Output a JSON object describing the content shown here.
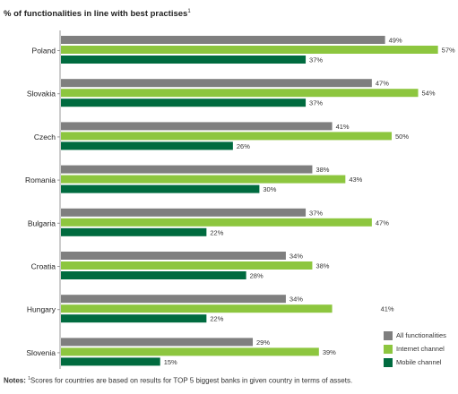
{
  "chart_data": {
    "type": "bar",
    "orientation": "horizontal",
    "title": "% of functionalities in line with best practises",
    "title_footnote": "1",
    "categories": [
      "Poland",
      "Slovakia",
      "Czech",
      "Romania",
      "Bulgaria",
      "Croatia",
      "Hungary",
      "Slovenia"
    ],
    "series": [
      {
        "name": "All functionalities",
        "color": "#7f7f7f",
        "values": [
          49,
          47,
          41,
          38,
          37,
          34,
          34,
          29
        ]
      },
      {
        "name": "Internet channel",
        "color": "#8dc63f",
        "values": [
          57,
          54,
          50,
          43,
          47,
          38,
          41,
          39
        ]
      },
      {
        "name": "Mobile channel",
        "color": "#006b3f",
        "values": [
          37,
          37,
          26,
          30,
          22,
          28,
          22,
          15
        ]
      }
    ],
    "value_suffix": "%",
    "xlim": [
      0,
      57
    ],
    "legend_position": "bottom-right",
    "grid": false
  },
  "notes": {
    "label": "Notes:",
    "footnote_mark": "1",
    "text": "Scores for countries are based on results for TOP 5 biggest banks in given country in terms of assets."
  }
}
